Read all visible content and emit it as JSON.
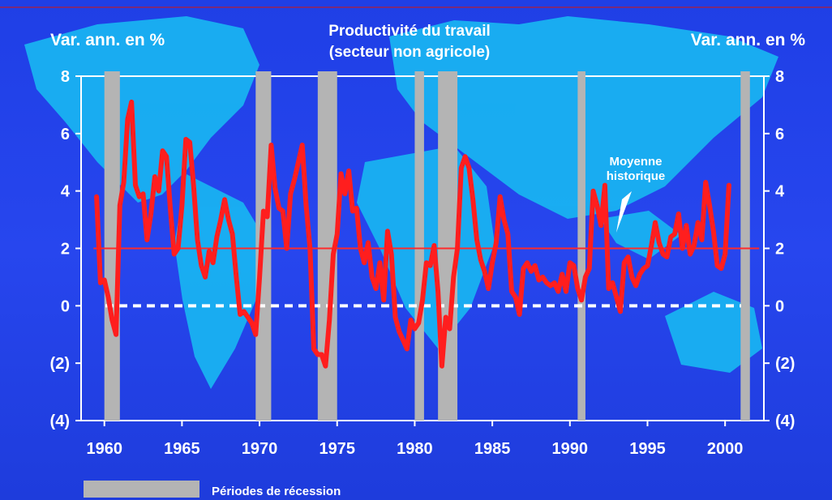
{
  "chart_data": {
    "type": "line",
    "title": "Productivité du travail",
    "subtitle": "(secteur non agricole)",
    "ylabel_left": "Var. ann. en %",
    "ylabel_right": "Var. ann. en %",
    "xlim": [
      1958.5,
      2002.5
    ],
    "ylim": [
      -4,
      8
    ],
    "x_ticks": [
      1960,
      1965,
      1970,
      1975,
      1980,
      1985,
      1990,
      1995,
      2000
    ],
    "x_tick_labels": [
      "1960",
      "1965",
      "1970",
      "1975",
      "1980",
      "1985",
      "1990",
      "1995",
      "2000"
    ],
    "y_ticks": [
      -4,
      -2,
      0,
      2,
      4,
      6,
      8
    ],
    "y_tick_labels": [
      "(4)",
      "(2)",
      "0",
      "2",
      "4",
      "6",
      "8"
    ],
    "grid": false,
    "zero_line": {
      "value": 0,
      "style": "dashed",
      "color": "#ffffff"
    },
    "reference_line": {
      "value": 2.0,
      "label": "Moyenne historique",
      "color": "#ff2a2a"
    },
    "recessions": [
      {
        "start": 1960.0,
        "end": 1961.0
      },
      {
        "start": 1969.75,
        "end": 1970.75
      },
      {
        "start": 1973.75,
        "end": 1975.0
      },
      {
        "start": 1980.0,
        "end": 1980.6
      },
      {
        "start": 1981.5,
        "end": 1982.75
      },
      {
        "start": 1990.5,
        "end": 1991.0
      },
      {
        "start": 2001.0,
        "end": 2001.6
      }
    ],
    "legend": [
      {
        "label": "Périodes de récession",
        "color": "#b4b4b4"
      }
    ],
    "series": [
      {
        "color": "#ff1e1e",
        "points": [
          [
            1959.5,
            3.8
          ],
          [
            1959.75,
            0.8
          ],
          [
            1960.0,
            0.9
          ],
          [
            1960.25,
            0.3
          ],
          [
            1960.5,
            -0.5
          ],
          [
            1960.75,
            -1.0
          ],
          [
            1961.0,
            3.5
          ],
          [
            1961.25,
            4.3
          ],
          [
            1961.5,
            6.5
          ],
          [
            1961.75,
            7.1
          ],
          [
            1962.0,
            4.2
          ],
          [
            1962.25,
            3.8
          ],
          [
            1962.5,
            3.9
          ],
          [
            1962.75,
            2.3
          ],
          [
            1963.0,
            3.2
          ],
          [
            1963.25,
            4.5
          ],
          [
            1963.5,
            4.0
          ],
          [
            1963.75,
            5.4
          ],
          [
            1964.0,
            5.2
          ],
          [
            1964.25,
            3.4
          ],
          [
            1964.5,
            1.8
          ],
          [
            1964.75,
            2.0
          ],
          [
            1965.0,
            3.5
          ],
          [
            1965.25,
            5.8
          ],
          [
            1965.5,
            5.7
          ],
          [
            1965.75,
            4.2
          ],
          [
            1966.0,
            2.3
          ],
          [
            1966.25,
            1.4
          ],
          [
            1966.5,
            1.0
          ],
          [
            1966.75,
            1.9
          ],
          [
            1967.0,
            1.5
          ],
          [
            1967.25,
            2.4
          ],
          [
            1967.5,
            3.0
          ],
          [
            1967.75,
            3.7
          ],
          [
            1968.0,
            3.0
          ],
          [
            1968.25,
            2.5
          ],
          [
            1968.5,
            1.0
          ],
          [
            1968.75,
            -0.3
          ],
          [
            1969.0,
            -0.2
          ],
          [
            1969.25,
            -0.4
          ],
          [
            1969.5,
            -0.6
          ],
          [
            1969.75,
            -1.0
          ],
          [
            1970.0,
            1.0
          ],
          [
            1970.25,
            3.3
          ],
          [
            1970.5,
            3.1
          ],
          [
            1970.75,
            5.6
          ],
          [
            1971.0,
            4.1
          ],
          [
            1971.25,
            3.4
          ],
          [
            1971.5,
            3.3
          ],
          [
            1971.75,
            2.0
          ],
          [
            1972.0,
            3.9
          ],
          [
            1972.25,
            4.4
          ],
          [
            1972.5,
            5.0
          ],
          [
            1972.75,
            5.6
          ],
          [
            1973.0,
            3.5
          ],
          [
            1973.25,
            2.0
          ],
          [
            1973.5,
            -1.5
          ],
          [
            1973.75,
            -1.7
          ],
          [
            1974.0,
            -1.7
          ],
          [
            1974.25,
            -2.1
          ],
          [
            1974.5,
            -0.5
          ],
          [
            1974.75,
            1.8
          ],
          [
            1975.0,
            2.5
          ],
          [
            1975.25,
            4.6
          ],
          [
            1975.5,
            3.9
          ],
          [
            1975.75,
            4.7
          ],
          [
            1976.0,
            3.3
          ],
          [
            1976.25,
            3.4
          ],
          [
            1976.5,
            2.0
          ],
          [
            1976.75,
            1.5
          ],
          [
            1977.0,
            2.2
          ],
          [
            1977.25,
            1.0
          ],
          [
            1977.5,
            0.6
          ],
          [
            1977.75,
            1.5
          ],
          [
            1978.0,
            0.2
          ],
          [
            1978.25,
            2.6
          ],
          [
            1978.5,
            1.8
          ],
          [
            1978.75,
            -0.4
          ],
          [
            1979.0,
            -0.9
          ],
          [
            1979.25,
            -1.2
          ],
          [
            1979.5,
            -1.5
          ],
          [
            1979.75,
            -0.5
          ],
          [
            1980.0,
            -0.8
          ],
          [
            1980.25,
            -0.6
          ],
          [
            1980.5,
            0.2
          ],
          [
            1980.75,
            1.5
          ],
          [
            1981.0,
            1.4
          ],
          [
            1981.25,
            2.1
          ],
          [
            1981.5,
            0.5
          ],
          [
            1981.75,
            -2.1
          ],
          [
            1982.0,
            -0.4
          ],
          [
            1982.25,
            -0.8
          ],
          [
            1982.5,
            1.0
          ],
          [
            1982.75,
            2.0
          ],
          [
            1983.0,
            4.8
          ],
          [
            1983.25,
            5.2
          ],
          [
            1983.5,
            4.8
          ],
          [
            1983.75,
            3.7
          ],
          [
            1984.0,
            2.3
          ],
          [
            1984.25,
            1.6
          ],
          [
            1984.5,
            1.2
          ],
          [
            1984.75,
            0.6
          ],
          [
            1985.0,
            1.5
          ],
          [
            1985.25,
            2.2
          ],
          [
            1985.5,
            3.8
          ],
          [
            1985.75,
            3.0
          ],
          [
            1986.0,
            2.5
          ],
          [
            1986.25,
            0.5
          ],
          [
            1986.5,
            0.3
          ],
          [
            1986.75,
            -0.3
          ],
          [
            1987.0,
            1.3
          ],
          [
            1987.25,
            1.5
          ],
          [
            1987.5,
            1.2
          ],
          [
            1987.75,
            1.4
          ],
          [
            1988.0,
            0.9
          ],
          [
            1988.25,
            1.0
          ],
          [
            1988.5,
            0.8
          ],
          [
            1988.75,
            0.7
          ],
          [
            1989.0,
            0.8
          ],
          [
            1989.25,
            0.5
          ],
          [
            1989.5,
            1.1
          ],
          [
            1989.75,
            0.5
          ],
          [
            1990.0,
            1.5
          ],
          [
            1990.25,
            1.4
          ],
          [
            1990.5,
            0.6
          ],
          [
            1990.75,
            0.2
          ],
          [
            1991.0,
            1.0
          ],
          [
            1991.25,
            1.3
          ],
          [
            1991.5,
            4.0
          ],
          [
            1991.75,
            3.5
          ],
          [
            1992.0,
            2.8
          ],
          [
            1992.25,
            4.2
          ],
          [
            1992.5,
            0.6
          ],
          [
            1992.75,
            0.8
          ],
          [
            1993.0,
            0.3
          ],
          [
            1993.25,
            -0.2
          ],
          [
            1993.5,
            1.5
          ],
          [
            1993.75,
            1.7
          ],
          [
            1994.0,
            1.0
          ],
          [
            1994.25,
            0.7
          ],
          [
            1994.5,
            1.1
          ],
          [
            1994.75,
            1.3
          ],
          [
            1995.0,
            1.4
          ],
          [
            1995.25,
            2.1
          ],
          [
            1995.5,
            2.9
          ],
          [
            1995.75,
            2.2
          ],
          [
            1996.0,
            1.8
          ],
          [
            1996.25,
            1.7
          ],
          [
            1996.5,
            2.4
          ],
          [
            1996.75,
            2.5
          ],
          [
            1997.0,
            3.2
          ],
          [
            1997.25,
            2.0
          ],
          [
            1997.5,
            2.8
          ],
          [
            1997.75,
            1.8
          ],
          [
            1998.0,
            2.1
          ],
          [
            1998.25,
            2.9
          ],
          [
            1998.5,
            2.3
          ],
          [
            1998.75,
            4.3
          ],
          [
            1999.0,
            3.5
          ],
          [
            1999.25,
            2.6
          ],
          [
            1999.5,
            1.4
          ],
          [
            1999.75,
            1.3
          ],
          [
            2000.0,
            1.8
          ],
          [
            2000.25,
            4.2
          ]
        ]
      }
    ]
  },
  "annotation": {
    "line1": "Moyenne",
    "line2": "historique"
  }
}
